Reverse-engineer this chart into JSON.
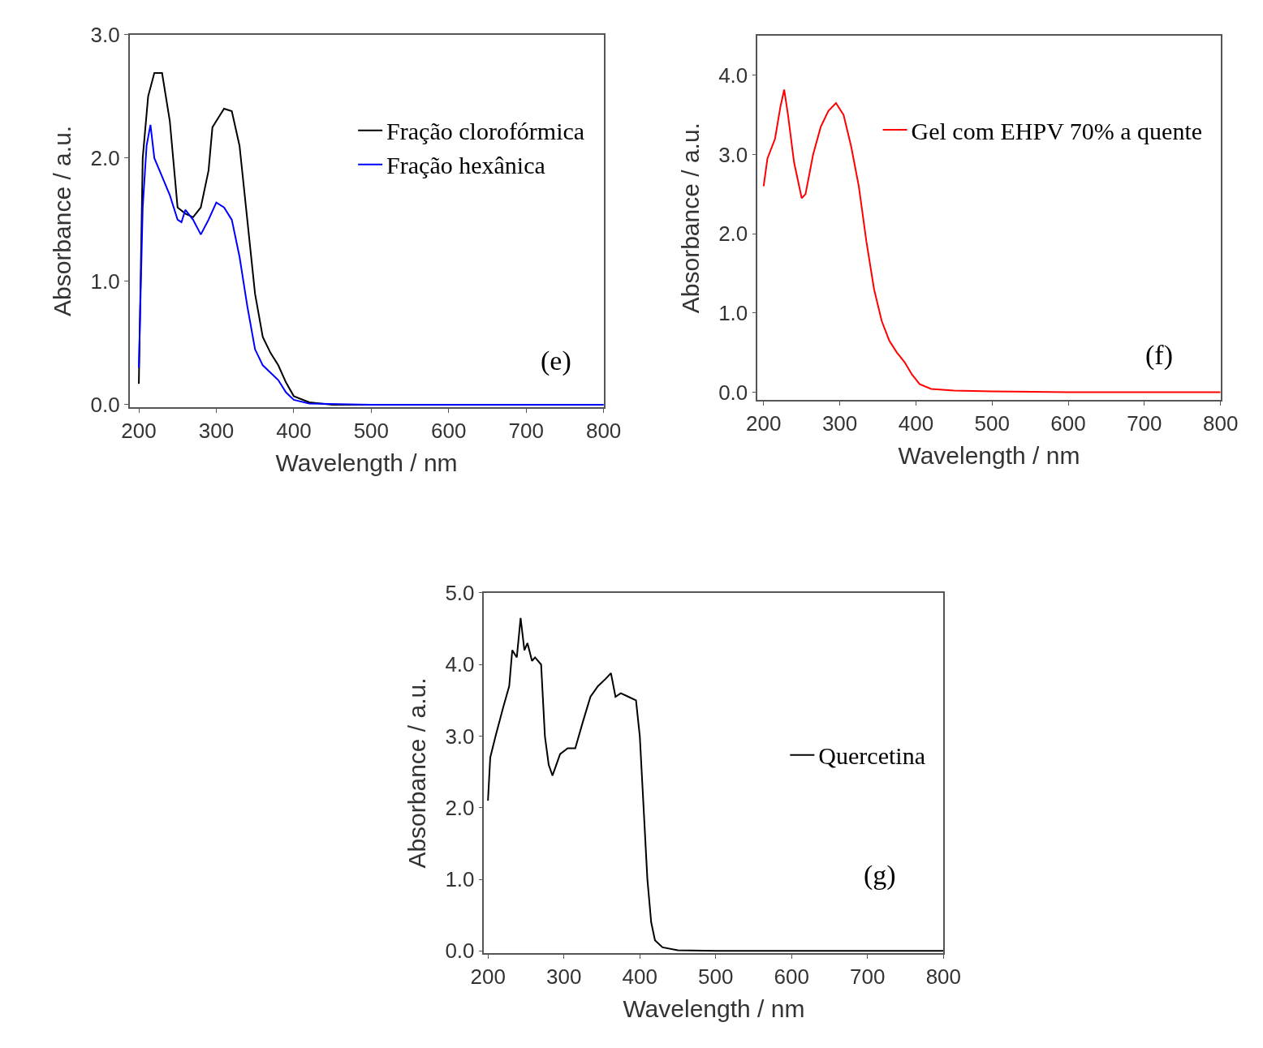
{
  "chart_data": [
    {
      "type": "line",
      "xlabel": "Wavelength / nm",
      "ylabel": "Absorbance / a.u.",
      "xlim": [
        188,
        800
      ],
      "ylim": [
        -0.02,
        3.0
      ],
      "xticks": [
        200,
        300,
        400,
        500,
        600,
        700,
        800
      ],
      "yticks": [
        {
          "value": 0,
          "label": "0.0"
        },
        {
          "value": 1,
          "label": "1.0"
        },
        {
          "value": 2,
          "label": "2.0"
        },
        {
          "value": 3,
          "label": "3.0"
        }
      ],
      "legend": "top right",
      "annotations": [
        "(e)"
      ],
      "x": [
        200,
        205,
        212,
        220,
        230,
        240,
        250,
        260,
        270,
        280,
        290,
        295,
        300,
        310,
        320,
        330,
        340,
        350,
        360,
        370,
        380,
        390,
        400,
        420,
        450,
        500,
        600,
        700,
        800
      ],
      "series": [
        {
          "name": "Fração clorofórmica",
          "color": "#000000",
          "values": [
            0.17,
            2.0,
            2.5,
            2.69,
            2.69,
            2.3,
            1.6,
            1.55,
            1.52,
            1.6,
            1.9,
            2.25,
            2.3,
            2.4,
            2.38,
            2.1,
            1.5,
            0.9,
            0.55,
            0.42,
            0.32,
            0.18,
            0.07,
            0.02,
            0.0,
            0.0,
            0.0,
            0.0,
            0.0
          ]
        },
        {
          "name": "Fração hexânica",
          "color": "#0000ff",
          "x": [
            200,
            205,
            210,
            215,
            220,
            230,
            240,
            250,
            255,
            260,
            270,
            280,
            290,
            300,
            310,
            320,
            330,
            340,
            350,
            360,
            370,
            380,
            390,
            400,
            420,
            500,
            600,
            700,
            800
          ],
          "values": [
            0.3,
            1.6,
            2.1,
            2.27,
            2.0,
            1.85,
            1.7,
            1.5,
            1.48,
            1.58,
            1.5,
            1.38,
            1.5,
            1.64,
            1.6,
            1.5,
            1.2,
            0.8,
            0.45,
            0.32,
            0.26,
            0.2,
            0.1,
            0.04,
            0.01,
            0.0,
            0.0,
            0.0,
            0.0
          ]
        }
      ]
    },
    {
      "type": "line",
      "xlabel": "Wavelength / nm",
      "ylabel": "Absorbance / a.u.",
      "xlim": [
        192,
        800
      ],
      "ylim": [
        -0.1,
        4.5
      ],
      "xticks": [
        200,
        300,
        400,
        500,
        600,
        700,
        800
      ],
      "yticks": [
        {
          "value": 0,
          "label": "0.0"
        },
        {
          "value": 1,
          "label": "1.0"
        },
        {
          "value": 2,
          "label": "2.0"
        },
        {
          "value": 3,
          "label": "3.0"
        },
        {
          "value": 4,
          "label": "4.0"
        }
      ],
      "legend": "top right",
      "annotations": [
        "(f)"
      ],
      "x": [
        200,
        205,
        215,
        222,
        227,
        232,
        240,
        250,
        255,
        265,
        275,
        285,
        295,
        305,
        315,
        325,
        335,
        345,
        355,
        365,
        375,
        385,
        395,
        405,
        420,
        450,
        500,
        600,
        700,
        800
      ],
      "series": [
        {
          "name": "Gel com EHPV 70% a quente",
          "color": "#ff0000",
          "values": [
            2.6,
            2.95,
            3.2,
            3.6,
            3.82,
            3.5,
            2.9,
            2.45,
            2.5,
            3.0,
            3.35,
            3.55,
            3.65,
            3.5,
            3.1,
            2.6,
            1.9,
            1.3,
            0.9,
            0.65,
            0.5,
            0.38,
            0.22,
            0.1,
            0.04,
            0.02,
            0.01,
            0.0,
            0.0,
            0.0
          ]
        }
      ]
    },
    {
      "type": "line",
      "xlabel": "Wavelength / nm",
      "ylabel": "Absorbance / a.u.",
      "xlim": [
        195,
        800
      ],
      "ylim": [
        -0.03,
        5.0
      ],
      "xticks": [
        200,
        300,
        400,
        500,
        600,
        700,
        800
      ],
      "yticks": [
        {
          "value": 0,
          "label": "0.0"
        },
        {
          "value": 1,
          "label": "1.0"
        },
        {
          "value": 2,
          "label": "2.0"
        },
        {
          "value": 3,
          "label": "3.0"
        },
        {
          "value": 4,
          "label": "4.0"
        },
        {
          "value": 5,
          "label": "5.0"
        }
      ],
      "legend": "right",
      "annotations": [
        "(g)"
      ],
      "x": [
        200,
        203,
        210,
        220,
        228,
        232,
        238,
        243,
        248,
        252,
        258,
        262,
        270,
        275,
        280,
        285,
        295,
        305,
        315,
        325,
        335,
        345,
        355,
        362,
        368,
        375,
        385,
        395,
        400,
        405,
        410,
        415,
        420,
        430,
        450,
        500,
        600,
        700,
        800
      ],
      "series": [
        {
          "name": "Quercetina",
          "color": "#000000",
          "values": [
            2.1,
            2.7,
            3.0,
            3.4,
            3.7,
            4.2,
            4.1,
            4.65,
            4.2,
            4.3,
            4.05,
            4.1,
            4.0,
            3.0,
            2.6,
            2.45,
            2.75,
            2.83,
            2.83,
            3.2,
            3.55,
            3.7,
            3.8,
            3.88,
            3.55,
            3.6,
            3.55,
            3.5,
            3.0,
            2.0,
            1.0,
            0.4,
            0.15,
            0.05,
            0.01,
            0.0,
            0.0,
            0.0,
            0.0
          ]
        }
      ]
    }
  ]
}
